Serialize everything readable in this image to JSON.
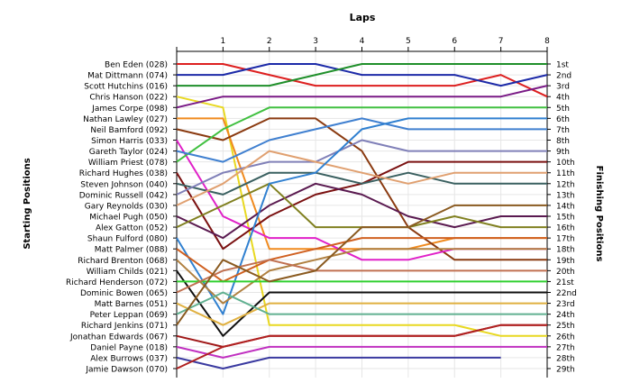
{
  "chart_data": {
    "type": "line",
    "title": "Laps",
    "xlabel": "Laps",
    "ylabel_left": "Starting Positions",
    "ylabel_right": "Finishing Positions",
    "x": [
      0,
      1,
      2,
      3,
      4,
      5,
      6,
      7,
      8
    ],
    "x_tick_labels": [
      "1",
      "2",
      "3",
      "4",
      "5",
      "6",
      "7",
      "8"
    ],
    "xlim": [
      0,
      8
    ],
    "ylim": [
      1,
      29
    ],
    "y_inverted": true,
    "grid": true,
    "starting_labels": [
      "Ben Eden (028)",
      "Mat Dittmann (074)",
      "Scott Hutchins (016)",
      "Chris Hanson (022)",
      "James Corpe (098)",
      "Nathan Lawley (027)",
      "Neil Bamford (092)",
      "Simon Harris (033)",
      "Gareth Taylor (024)",
      "William Priest (078)",
      "Richard Hughes (038)",
      "Steven Johnson (040)",
      "Dominic Russell (042)",
      "Gary Reynolds (030)",
      "Michael Pugh (050)",
      "Alex Gatton (052)",
      "Shaun Fulford (080)",
      "Matt Palmer (088)",
      "Richard Brenton (068)",
      "William Childs (021)",
      "Richard Henderson (072)",
      "Dominic Bowen (065)",
      "Matt Barnes (051)",
      "Peter Leppan (069)",
      "Richard Jenkins (071)",
      "Jonathan Edwards (067)",
      "Daniel Payne (018)",
      "Alex Burrows (037)",
      "Jamie Dawson (070)"
    ],
    "finishing_labels": [
      "1st",
      "2nd",
      "3rd",
      "4th",
      "5th",
      "6th",
      "7th",
      "8th",
      "9th",
      "10th",
      "11th",
      "12th",
      "13th",
      "14th",
      "15th",
      "16th",
      "17th",
      "18th",
      "19th",
      "20th",
      "21st",
      "22nd",
      "23rd",
      "24th",
      "25th",
      "26th",
      "27th",
      "28th",
      "29th"
    ],
    "series": [
      {
        "color": "#dd1f1f",
        "values": [
          1,
          1,
          2,
          3,
          3,
          3,
          3,
          2,
          4
        ]
      },
      {
        "color": "#1c2aa8",
        "values": [
          2,
          2,
          1,
          1,
          2,
          2,
          2,
          3,
          2
        ]
      },
      {
        "color": "#1f8f2a",
        "values": [
          3,
          3,
          3,
          2,
          1,
          1,
          1,
          1,
          1
        ]
      },
      {
        "color": "#e8d820",
        "values": [
          4,
          5,
          25,
          25,
          25,
          25,
          25,
          26,
          26
        ]
      },
      {
        "color": "#7a1a86",
        "values": [
          5,
          4,
          4,
          4,
          4,
          4,
          4,
          4,
          3
        ]
      },
      {
        "color": "#f08a1e",
        "values": [
          6,
          6,
          18,
          18,
          18,
          18,
          17,
          17,
          17
        ]
      },
      {
        "color": "#8a3a10",
        "values": [
          7,
          8,
          6,
          6,
          9,
          16,
          19,
          19,
          19
        ]
      },
      {
        "color": "#e020c8",
        "values": [
          8,
          15,
          17,
          17,
          19,
          19,
          18,
          18,
          18
        ]
      },
      {
        "color": "#40c040",
        "values": [
          10,
          7,
          5,
          5,
          5,
          5,
          5,
          5,
          5
        ]
      },
      {
        "color": "#4080d0",
        "values": [
          9,
          10,
          8,
          7,
          6,
          7,
          7,
          7,
          7
        ]
      },
      {
        "color": "#7a1010",
        "values": [
          11,
          18,
          15,
          13,
          12,
          10,
          10,
          10,
          10
        ]
      },
      {
        "color": "#3a6060",
        "values": [
          12,
          13,
          11,
          11,
          12,
          11,
          12,
          12,
          12
        ]
      },
      {
        "color": "#8080b8",
        "values": [
          13,
          11,
          10,
          10,
          8,
          9,
          9,
          9,
          9
        ]
      },
      {
        "color": "#e0a070",
        "values": [
          14,
          12,
          9,
          10,
          11,
          12,
          11,
          11,
          11
        ]
      },
      {
        "color": "#5a1a50",
        "values": [
          15,
          17,
          14,
          12,
          13,
          15,
          16,
          15,
          15
        ]
      },
      {
        "color": "#808020",
        "values": [
          16,
          14,
          12,
          16,
          16,
          16,
          15,
          16,
          16
        ]
      },
      {
        "color": "#3080d0",
        "values": [
          17,
          24,
          12,
          11,
          7,
          6,
          6,
          6,
          6
        ]
      },
      {
        "color": "#d06020",
        "values": [
          18,
          21,
          19,
          18,
          17,
          17,
          17,
          17,
          17
        ]
      },
      {
        "color": "#b08040",
        "values": [
          19,
          23,
          20,
          19,
          18,
          18,
          18,
          18,
          18
        ]
      },
      {
        "color": "#101010",
        "values": [
          20,
          26,
          22,
          22,
          22,
          22,
          22,
          22,
          22
        ]
      },
      {
        "color": "#30d030",
        "values": [
          21,
          21,
          21,
          21,
          21,
          21,
          21,
          21,
          21
        ]
      },
      {
        "color": "#c07050",
        "values": [
          22,
          20,
          19,
          20,
          20,
          20,
          20,
          20,
          20
        ]
      },
      {
        "color": "#e0b040",
        "values": [
          23,
          25,
          23,
          23,
          23,
          23,
          23,
          23,
          23
        ]
      },
      {
        "color": "#60b090",
        "values": [
          24,
          22,
          24,
          24,
          24,
          24,
          24,
          24,
          24
        ]
      },
      {
        "color": "#8a5a20",
        "values": [
          25,
          19,
          21,
          20,
          16,
          16,
          14,
          14,
          14
        ]
      },
      {
        "color": "#a01818",
        "values": [
          26,
          27,
          26,
          26,
          26,
          26,
          26,
          25,
          25
        ]
      },
      {
        "color": "#c030c0",
        "values": [
          27,
          28,
          27,
          27,
          27,
          27,
          27,
          27,
          27
        ]
      },
      {
        "color": "#3a3aa0",
        "values": [
          28,
          29,
          28,
          28,
          28,
          28,
          28,
          28,
          null
        ]
      },
      {
        "color": "#b02020",
        "values": [
          29,
          27,
          26,
          26,
          26,
          26,
          26,
          25,
          25
        ]
      }
    ]
  }
}
